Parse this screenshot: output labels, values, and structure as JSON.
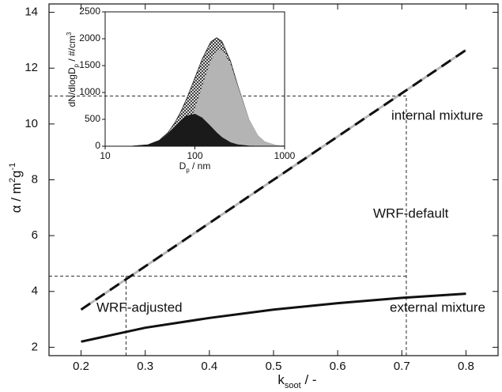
{
  "chart_data": [
    {
      "type": "line",
      "xlabel": [
        {
          "text": "k"
        },
        {
          "text": "soot",
          "script": "sub"
        },
        {
          "text": " / -"
        }
      ],
      "ylabel": [
        {
          "text": "α / m"
        },
        {
          "text": "2",
          "script": "sup"
        },
        {
          "text": "g"
        },
        {
          "text": "-1",
          "script": "sup"
        }
      ],
      "x": [
        0.2,
        0.3,
        0.4,
        0.5,
        0.6,
        0.7,
        0.8
      ],
      "series": [
        {
          "values": [
            3.35,
            4.9,
            6.45,
            8.0,
            9.55,
            11.1,
            12.65
          ],
          "color": "#111111",
          "style": "dashed",
          "underlay_color": "#b8b8b8"
        },
        {
          "values": [
            2.2,
            2.7,
            3.05,
            3.35,
            3.58,
            3.77,
            3.92
          ],
          "color": "#111111",
          "style": "solid"
        }
      ],
      "reference_lines": {
        "x": [
          0.27,
          0.707
        ],
        "y": [
          4.55,
          11.0
        ]
      },
      "annotations": [
        "internal mixture",
        "WRF-default",
        "WRF-adjusted",
        "external mixture"
      ],
      "xlim": [
        0.15,
        0.85
      ],
      "xticks": [
        0.2,
        0.3,
        0.4,
        0.5,
        0.6,
        0.7,
        0.8
      ],
      "ylim": [
        1.7,
        14.3
      ],
      "yticks": [
        2,
        4,
        6,
        8,
        10,
        12,
        14
      ]
    },
    {
      "type": "area",
      "xlabel": [
        {
          "text": "D"
        },
        {
          "text": "p",
          "script": "sub"
        },
        {
          "text": " / nm"
        }
      ],
      "ylabel": [
        {
          "text": "dN/dlogD"
        },
        {
          "text": "p",
          "script": "sub"
        },
        {
          "text": " / #/cm"
        },
        {
          "text": "3",
          "script": "sup"
        }
      ],
      "x": [
        10,
        20,
        30,
        40,
        50,
        60,
        70,
        80,
        100,
        120,
        150,
        175,
        200,
        250,
        300,
        400,
        500,
        600,
        800,
        1000
      ],
      "series": [
        {
          "values": [
            0,
            2,
            27,
            108,
            253,
            442,
            649,
            864,
            1271,
            1613,
            1940,
            2019,
            1953,
            1578,
            1135,
            496,
            200,
            81,
            14,
            3
          ],
          "color": "#222222",
          "fill": "hatch"
        },
        {
          "values": [
            0,
            0,
            1,
            6,
            26,
            78,
            169,
            305,
            675,
            1085,
            1573,
            1769,
            1790,
            1512,
            1108,
            491,
            200,
            81,
            14,
            3
          ],
          "color": "#b4b4b4",
          "fill": "solid"
        },
        {
          "values": [
            0,
            2,
            26,
            102,
            227,
            364,
            480,
            559,
            596,
            528,
            367,
            250,
            163,
            66,
            27,
            5,
            0,
            0,
            0,
            0
          ],
          "color": "#1a1a1a",
          "fill": "solid"
        }
      ],
      "xscale": "log",
      "xlim": [
        10,
        1000
      ],
      "xticks": [
        10,
        100,
        1000
      ],
      "ylim": [
        0,
        2500
      ],
      "yticks": [
        0,
        500,
        1000,
        1500,
        2000,
        2500
      ]
    }
  ]
}
